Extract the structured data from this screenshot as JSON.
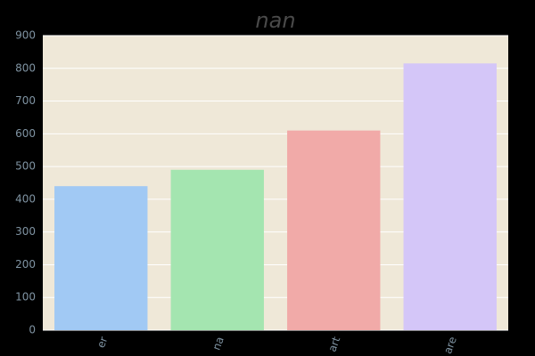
{
  "chart_data": {
    "type": "bar",
    "title": "nan",
    "categories": [
      "er",
      "na",
      "art",
      "are"
    ],
    "values": [
      440,
      490,
      610,
      815
    ],
    "colors": [
      "#a1c9f4",
      "#a4e5b0",
      "#f1aaa8",
      "#d4c6f8"
    ],
    "ylim": [
      0,
      900
    ],
    "yticks": [
      0,
      100,
      200,
      300,
      400,
      500,
      600,
      700,
      800,
      900
    ],
    "grid": true
  }
}
